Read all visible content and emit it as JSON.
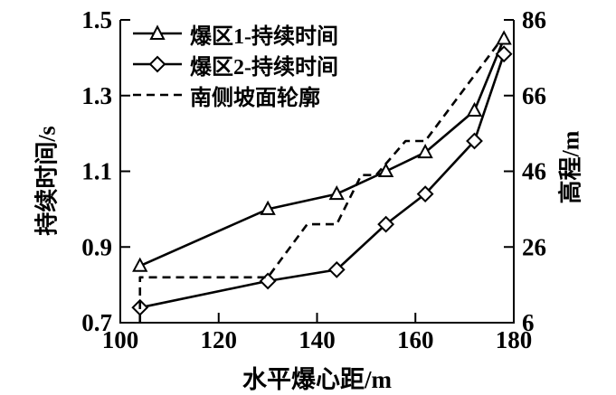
{
  "chart_data": {
    "type": "line",
    "title": "",
    "xlabel": "水平爆心距/m",
    "ylabel_left": "持续时间/s",
    "ylabel_right": "高程/m",
    "grid": false,
    "legend_position": "top-left-inside",
    "x_axis": {
      "min": 100,
      "max": 180,
      "ticks": [
        100,
        120,
        140,
        160,
        180
      ]
    },
    "y_axis_left": {
      "min": 0.7,
      "max": 1.5,
      "ticks": [
        0.7,
        0.9,
        1.1,
        1.3,
        1.5
      ]
    },
    "y_axis_right": {
      "min": 6,
      "max": 86,
      "ticks": [
        6,
        26,
        46,
        66,
        86
      ]
    },
    "series": [
      {
        "name": "爆区1-持续时间",
        "axis": "left",
        "marker": "triangle",
        "line": "solid",
        "points": [
          [
            104,
            0.85
          ],
          [
            130,
            1.0
          ],
          [
            144,
            1.04
          ],
          [
            154,
            1.1
          ],
          [
            162,
            1.15
          ],
          [
            172,
            1.26
          ],
          [
            178,
            1.45
          ]
        ]
      },
      {
        "name": "爆区2-持续时间",
        "axis": "left",
        "marker": "diamond",
        "line": "solid",
        "points": [
          [
            104,
            0.74
          ],
          [
            130,
            0.81
          ],
          [
            144,
            0.84
          ],
          [
            154,
            0.96
          ],
          [
            162,
            1.04
          ],
          [
            172,
            1.18
          ],
          [
            178,
            1.41
          ]
        ]
      },
      {
        "name": "南侧坡面轮廓",
        "axis": "right",
        "marker": "none",
        "line": "dashed",
        "points": [
          [
            104,
            6
          ],
          [
            104,
            18
          ],
          [
            130,
            18
          ],
          [
            138,
            32
          ],
          [
            144,
            32
          ],
          [
            149,
            45
          ],
          [
            152,
            45
          ],
          [
            158,
            54
          ],
          [
            162,
            54
          ],
          [
            177,
            80
          ]
        ]
      }
    ],
    "colors": {
      "line": "#000000",
      "marker_fill": "#ffffff",
      "background": "#ffffff"
    }
  }
}
